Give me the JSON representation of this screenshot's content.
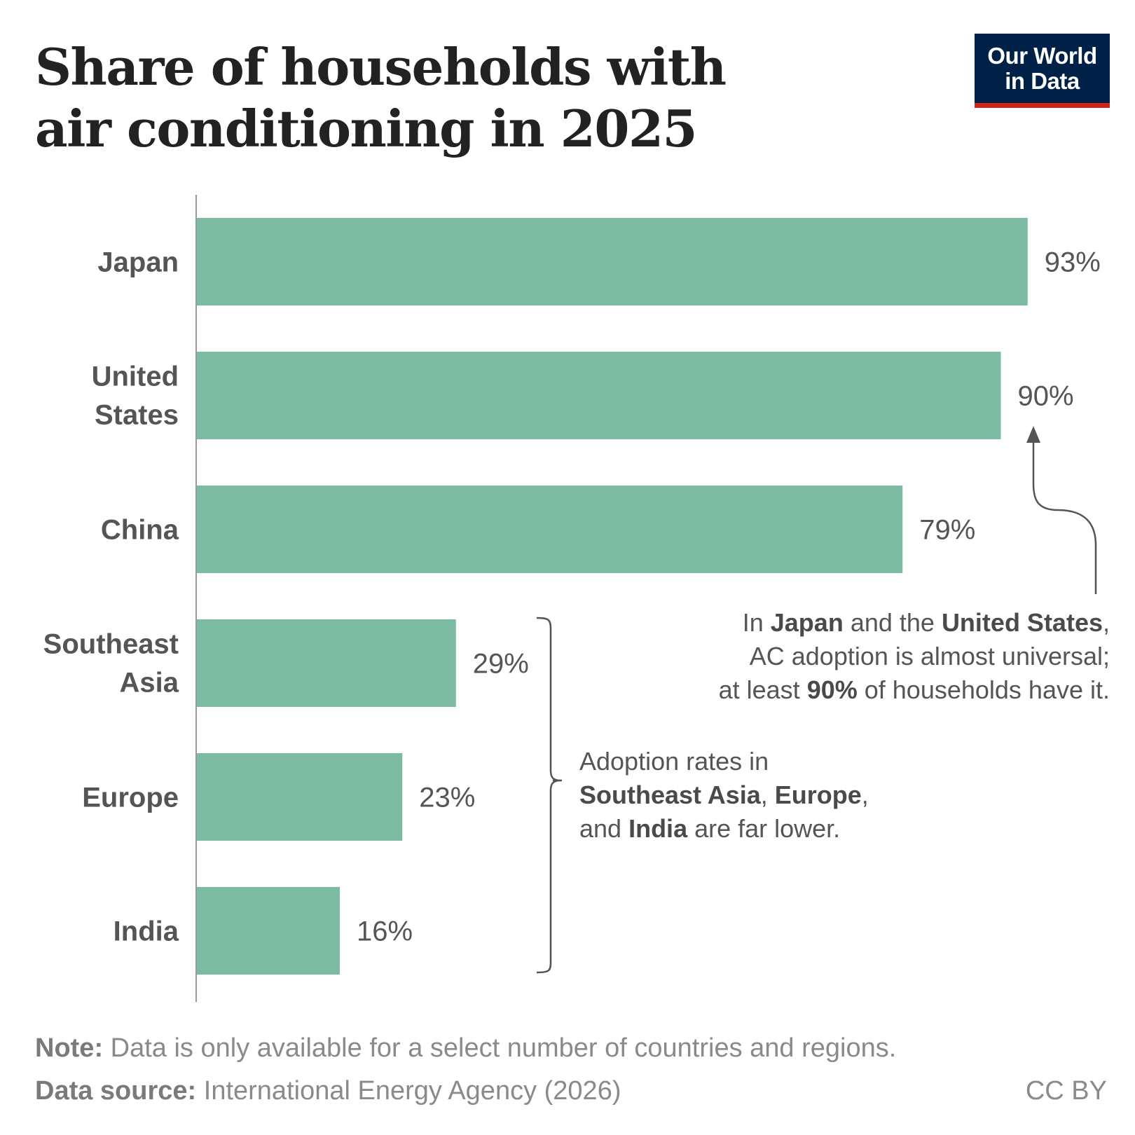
{
  "title": "Share of households with air conditioning in 2025",
  "logo": {
    "line1": "Our World",
    "line2": "in Data"
  },
  "chart_data": {
    "type": "bar",
    "orientation": "horizontal",
    "categories": [
      "Japan",
      "United States",
      "China",
      "Southeast Asia",
      "Europe",
      "India"
    ],
    "values": [
      93,
      90,
      79,
      29,
      23,
      16
    ],
    "value_labels": [
      "93%",
      "90%",
      "79%",
      "29%",
      "23%",
      "16%"
    ],
    "unit": "%",
    "xlim": [
      0,
      100
    ],
    "bar_color": "#7bbba2",
    "grid": false,
    "legend": "none"
  },
  "annotations": {
    "universal": {
      "l1_a": "In ",
      "l1_b": "Japan",
      "l1_c": " and the ",
      "l1_d": "United States",
      "l1_e": ",",
      "l2": "AC adoption is almost universal;",
      "l3_a": "at least ",
      "l3_b": "90%",
      "l3_c": " of households have it."
    },
    "lower": {
      "l1": "Adoption rates in",
      "l2_a": "Southeast Asia",
      "l2_b": ", ",
      "l2_c": "Europe",
      "l2_d": ",",
      "l3_a": "and ",
      "l3_b": "India",
      "l3_c": " are far lower."
    }
  },
  "footer": {
    "note_label": "Note:",
    "note_text": " Data is only available for a select number of countries and regions.",
    "source_label": "Data source:",
    "source_text": " International Energy Agency (2026)",
    "license": "CC BY"
  }
}
